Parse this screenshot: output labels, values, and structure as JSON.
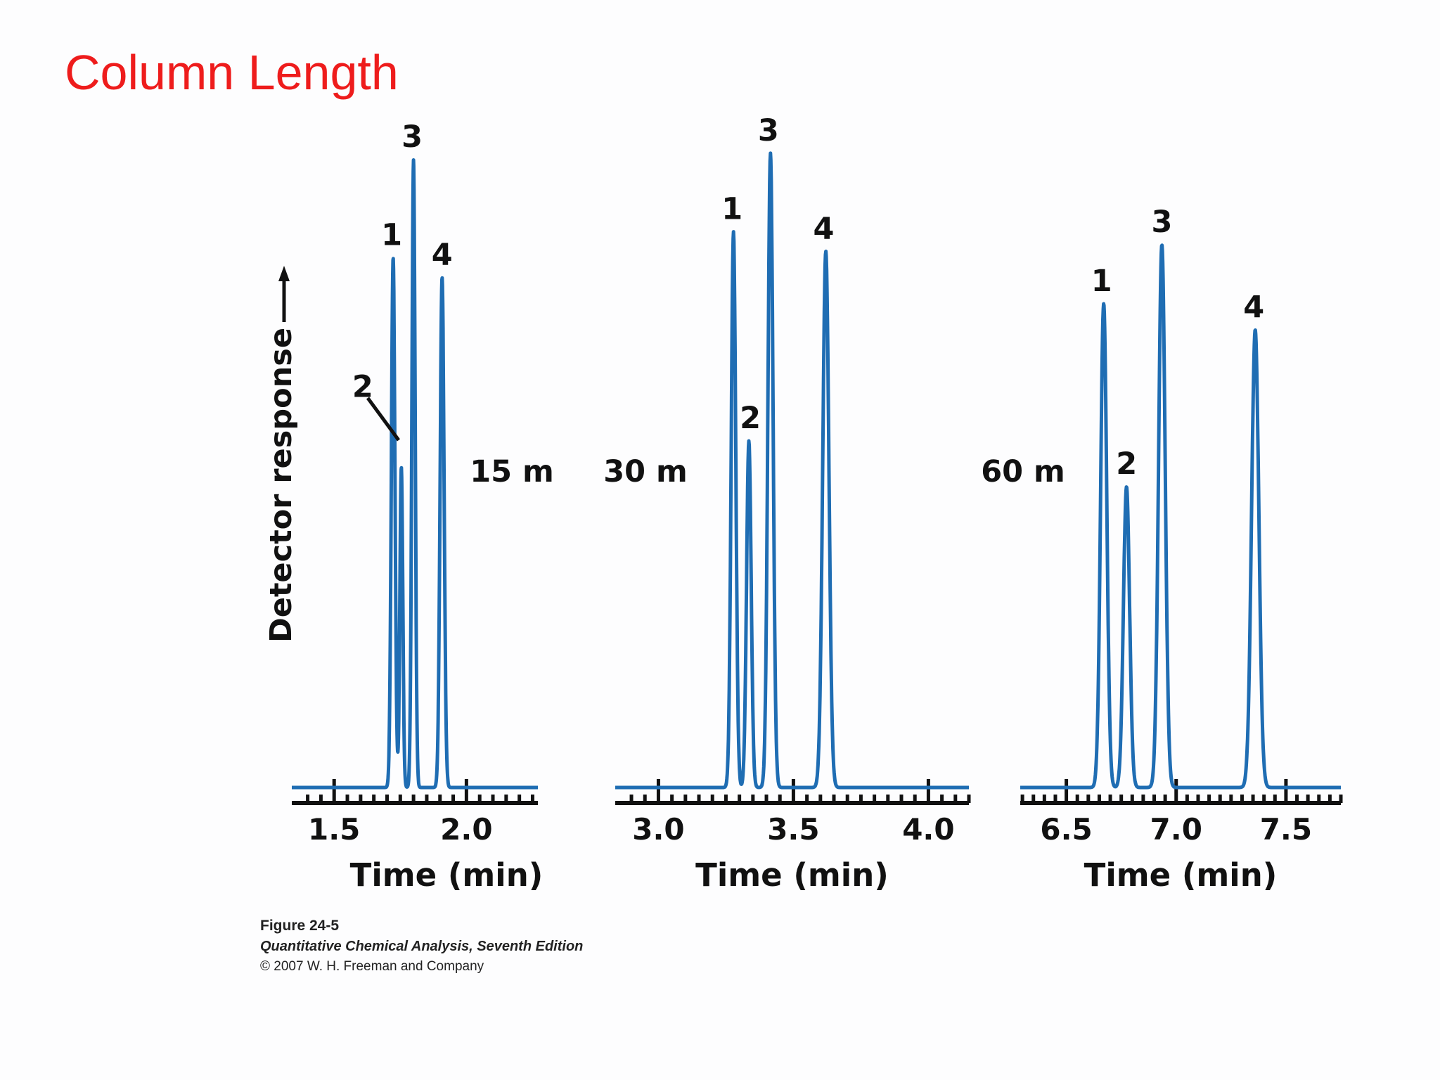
{
  "slide_title": "Column Length",
  "colors": {
    "title": "#ee1c1c",
    "trace": "#1f6db3",
    "axis": "#111111"
  },
  "caption": {
    "figure": "Figure 24-5",
    "book": "Quantitative Chemical Analysis, Seventh Edition",
    "copyright": "© 2007 W. H. Freeman and Company"
  },
  "chart_data": [
    {
      "type": "line",
      "column_label": "15 m",
      "xlabel": "Time (min)",
      "ylabel": "Detector response",
      "xlim": [
        1.34,
        2.27
      ],
      "ylim": [
        0,
        1
      ],
      "xticks": [
        "1.5",
        "2.0"
      ],
      "minor_tick_step": 0.1,
      "peaks": [
        {
          "label": "1",
          "time": 1.723,
          "height": 0.81,
          "width": 0.0068
        },
        {
          "label": "2",
          "time": 1.754,
          "height": 0.49,
          "width": 0.0055
        },
        {
          "label": "3",
          "time": 1.8,
          "height": 0.96,
          "width": 0.0062
        },
        {
          "label": "4",
          "time": 1.908,
          "height": 0.78,
          "width": 0.0075
        }
      ]
    },
    {
      "type": "line",
      "column_label": "30 m",
      "xlabel": "Time (min)",
      "ylabel": "",
      "xlim": [
        2.84,
        4.15
      ],
      "ylim": [
        0,
        1
      ],
      "xticks": [
        "3.0",
        "3.5",
        "4.0"
      ],
      "minor_tick_step": 0.1,
      "peaks": [
        {
          "label": "1",
          "time": 3.278,
          "height": 0.85,
          "width": 0.0085
        },
        {
          "label": "2",
          "time": 3.335,
          "height": 0.53,
          "width": 0.0085
        },
        {
          "label": "3",
          "time": 3.415,
          "height": 0.97,
          "width": 0.0095
        },
        {
          "label": "4",
          "time": 3.62,
          "height": 0.82,
          "width": 0.0115
        }
      ]
    },
    {
      "type": "line",
      "column_label": "60 m",
      "xlabel": "Time (min)",
      "ylabel": "",
      "xlim": [
        6.29,
        7.75
      ],
      "ylim": [
        0,
        1
      ],
      "xticks": [
        "6.5",
        "7.0",
        "7.5"
      ],
      "minor_tick_step": 0.1,
      "peaks": [
        {
          "label": "1",
          "time": 6.67,
          "height": 0.74,
          "width": 0.014
        },
        {
          "label": "2",
          "time": 6.774,
          "height": 0.46,
          "width": 0.014
        },
        {
          "label": "3",
          "time": 6.935,
          "height": 0.83,
          "width": 0.015
        },
        {
          "label": "4",
          "time": 7.36,
          "height": 0.7,
          "width": 0.0165
        }
      ]
    }
  ]
}
